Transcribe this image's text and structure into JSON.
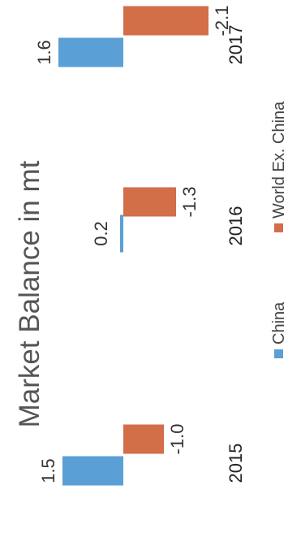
{
  "chart_data": {
    "type": "bar",
    "title": "Market Balance in mt",
    "categories": [
      "2015",
      "2016",
      "2017"
    ],
    "series": [
      {
        "name": "China",
        "values": [
          1.5,
          0.2,
          1.6
        ],
        "labels": [
          "1.5",
          "0.2",
          "1.6"
        ],
        "color": "#5a9fd6"
      },
      {
        "name": "World Ex. China",
        "values": [
          -1.0,
          -1.3,
          -2.1
        ],
        "labels": [
          "-1.0",
          "-1.3",
          "-2.1"
        ],
        "color": "#d26e48"
      }
    ],
    "legend_position": "bottom",
    "grid": false,
    "ylim": [
      -2.2,
      1.7
    ],
    "orientation": "rotated-90-counterclockwise"
  }
}
